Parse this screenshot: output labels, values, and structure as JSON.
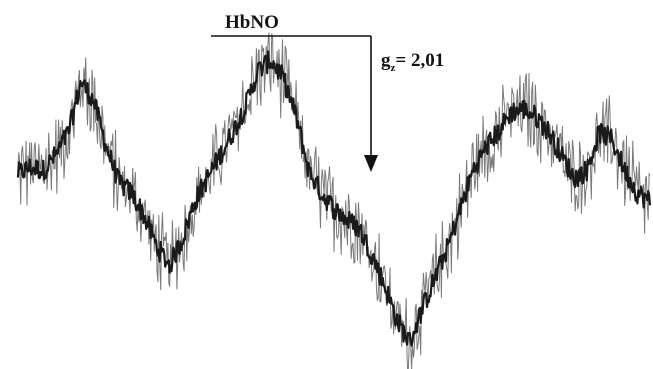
{
  "chart_data": {
    "type": "line",
    "title": "",
    "xlabel": "",
    "ylabel": "",
    "grid": false,
    "legend": "none",
    "x": [
      0,
      2,
      4,
      6,
      8,
      10,
      12,
      14,
      16,
      18,
      20,
      22,
      24,
      26,
      28,
      30,
      32,
      34,
      36,
      38,
      40,
      42,
      44,
      46,
      48,
      50,
      52,
      54,
      56,
      58,
      60,
      62,
      64,
      66,
      68,
      70,
      72,
      74,
      76,
      78,
      80,
      82,
      84,
      86,
      88,
      90,
      92,
      94,
      96,
      98,
      100
    ],
    "series": [
      {
        "color": "#1a1a1a",
        "values": [
          0.18,
          0.22,
          0.2,
          0.3,
          0.45,
          0.78,
          0.65,
          0.35,
          0.12,
          0.05,
          -0.1,
          -0.3,
          -0.42,
          -0.25,
          0.0,
          0.15,
          0.3,
          0.45,
          0.62,
          0.85,
          0.92,
          0.8,
          0.55,
          0.2,
          0.05,
          -0.05,
          -0.12,
          -0.18,
          -0.35,
          -0.55,
          -0.78,
          -0.92,
          -0.7,
          -0.5,
          -0.3,
          -0.05,
          0.2,
          0.35,
          0.45,
          0.58,
          0.6,
          0.55,
          0.45,
          0.3,
          0.15,
          0.2,
          0.45,
          0.4,
          0.2,
          0.05,
          0.0
        ]
      }
    ],
    "annotations": [
      {
        "label_main": "HbNO",
        "label_g": "g",
        "label_sub": "z",
        "label_value": "= 2,01",
        "x": 58
      }
    ]
  }
}
